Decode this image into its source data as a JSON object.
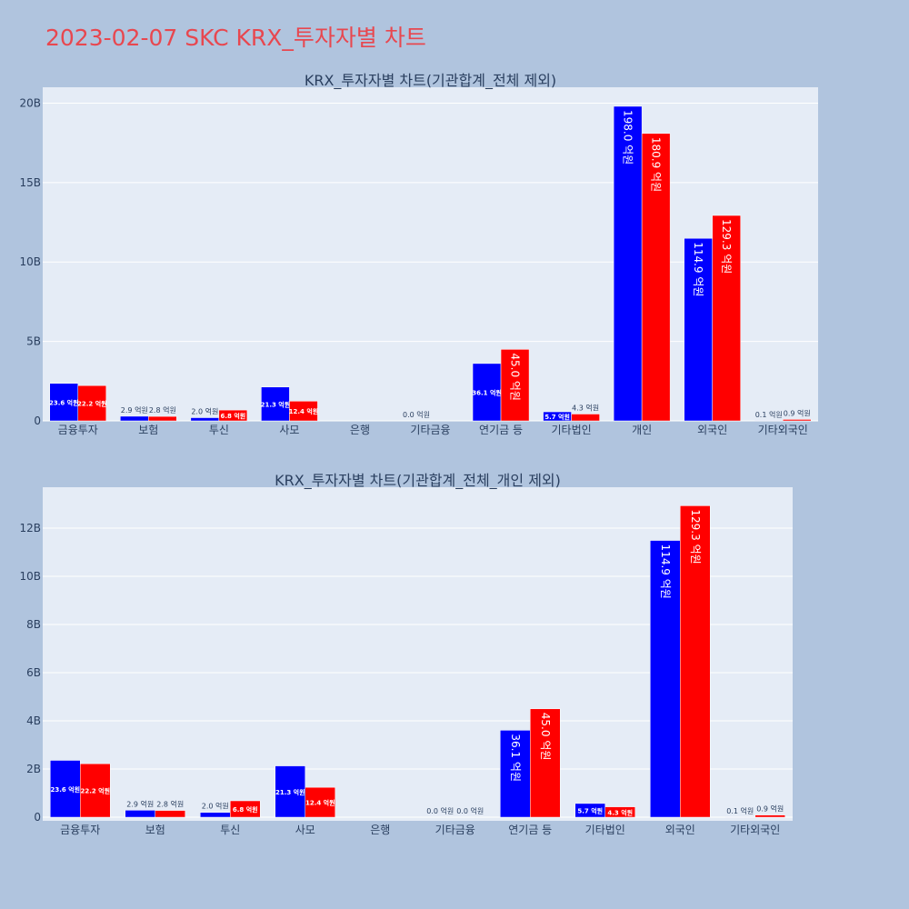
{
  "title": "2023-02-07 SKC KRX_투자자별 차트",
  "colors": {
    "page_bg": "#b0c4de",
    "plot_bg": "#e5ecf6",
    "title": "#e8474f",
    "series_blue": "#0000ff",
    "series_red": "#ff0000",
    "grid": "#ffffff",
    "outside_label": "#2a3f5f"
  },
  "chart_data": [
    {
      "type": "bar",
      "title": "KRX_투자자별 차트(기관합계_전체 제외)",
      "categories": [
        "금융투자",
        "보험",
        "투신",
        "사모",
        "은행",
        "기타금융",
        "연기금 등",
        "기타법인",
        "개인",
        "외국인",
        "기타외국인"
      ],
      "ylim": [
        0,
        21000000000
      ],
      "yticks": [
        0,
        5000000000,
        10000000000,
        15000000000,
        20000000000
      ],
      "yticklabels": [
        "0",
        "5B",
        "10B",
        "15B",
        "20B"
      ],
      "grid": true,
      "series": [
        {
          "color": "#0000ff",
          "values": [
            2360000000,
            290000000,
            200000000,
            2130000000,
            null,
            0,
            3610000000,
            570000000,
            19800000000,
            11490000000,
            10000000
          ],
          "labels": [
            "23.6 억원",
            "2.9 억원",
            "2.0 억원",
            "21.3 억원",
            "",
            "0.0 억원",
            "36.1 억원",
            "5.7 억원",
            "198.0 억원",
            "114.9 억원",
            "0.1 억원"
          ]
        },
        {
          "color": "#ff0000",
          "values": [
            2220000000,
            280000000,
            680000000,
            1240000000,
            null,
            null,
            4500000000,
            430000000,
            18090000000,
            12930000000,
            90000000
          ],
          "labels": [
            "22.2 억원",
            "2.8 억원",
            "6.8 억원",
            "12.4 억원",
            "",
            "",
            "45.0 억원",
            "4.3 억원",
            "180.9 억원",
            "129.3 억원",
            "0.9 억원"
          ]
        }
      ]
    },
    {
      "type": "bar",
      "title": "KRX_투자자별 차트(기관합계_전체_개인 제외)",
      "categories": [
        "금융투자",
        "보험",
        "투신",
        "사모",
        "은행",
        "기타금융",
        "연기금 등",
        "기타법인",
        "외국인",
        "기타외국인"
      ],
      "ylim": [
        -150000000,
        13700000000
      ],
      "yticks": [
        0,
        2000000000,
        4000000000,
        6000000000,
        8000000000,
        10000000000,
        12000000000
      ],
      "yticklabels": [
        "0",
        "2B",
        "4B",
        "6B",
        "8B",
        "10B",
        "12B"
      ],
      "grid": true,
      "series": [
        {
          "color": "#0000ff",
          "values": [
            2360000000,
            290000000,
            200000000,
            2130000000,
            null,
            0,
            3610000000,
            570000000,
            11490000000,
            10000000
          ],
          "labels": [
            "23.6 억원",
            "2.9 억원",
            "2.0 억원",
            "21.3 억원",
            "",
            "0.0 억원",
            "36.1 억원",
            "5.7 억원",
            "114.9 억원",
            "0.1 억원"
          ]
        },
        {
          "color": "#ff0000",
          "values": [
            2220000000,
            280000000,
            680000000,
            1240000000,
            null,
            0,
            4500000000,
            430000000,
            12930000000,
            90000000
          ],
          "labels": [
            "22.2 억원",
            "2.8 억원",
            "6.8 억원",
            "12.4 억원",
            "",
            "0.0 억원",
            "45.0 억원",
            "4.3 억원",
            "129.3 억원",
            "0.9 억원"
          ]
        }
      ]
    }
  ]
}
